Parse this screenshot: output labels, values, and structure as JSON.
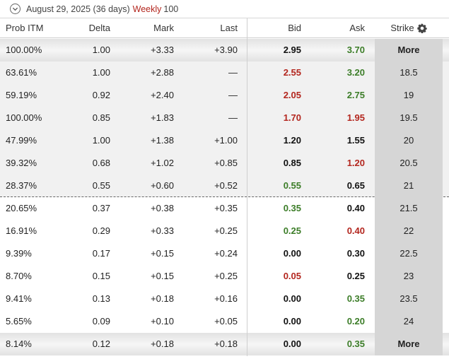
{
  "expiry": {
    "date": "August 29, 2025",
    "days": "(36 days)",
    "type": "Weekly",
    "count": "100"
  },
  "headers": {
    "prob": "Prob ITM",
    "delta": "Delta",
    "mark": "Mark",
    "last": "Last",
    "bid": "Bid",
    "ask": "Ask",
    "strike": "Strike"
  },
  "colors": {
    "up": "#3c7d28",
    "down": "#b3261e",
    "neutral": "#111111"
  },
  "rows": [
    {
      "prob": "100.00%",
      "delta": "1.00",
      "mark": "+3.33",
      "last": "+3.90",
      "bid": "2.95",
      "bid_dir": "neu",
      "ask": "3.70",
      "ask_dir": "pos",
      "strike": "More"
    },
    {
      "prob": "63.61%",
      "delta": "1.00",
      "mark": "+2.88",
      "last": "—",
      "bid": "2.55",
      "bid_dir": "neg",
      "ask": "3.20",
      "ask_dir": "pos",
      "strike": "18.5"
    },
    {
      "prob": "59.19%",
      "delta": "0.92",
      "mark": "+2.40",
      "last": "—",
      "bid": "2.05",
      "bid_dir": "neg",
      "ask": "2.75",
      "ask_dir": "pos",
      "strike": "19"
    },
    {
      "prob": "100.00%",
      "delta": "0.85",
      "mark": "+1.83",
      "last": "—",
      "bid": "1.70",
      "bid_dir": "neg",
      "ask": "1.95",
      "ask_dir": "neg",
      "strike": "19.5"
    },
    {
      "prob": "47.99%",
      "delta": "1.00",
      "mark": "+1.38",
      "last": "+1.00",
      "bid": "1.20",
      "bid_dir": "neu",
      "ask": "1.55",
      "ask_dir": "neu",
      "strike": "20"
    },
    {
      "prob": "39.32%",
      "delta": "0.68",
      "mark": "+1.02",
      "last": "+0.85",
      "bid": "0.85",
      "bid_dir": "neu",
      "ask": "1.20",
      "ask_dir": "neg",
      "strike": "20.5"
    },
    {
      "prob": "28.37%",
      "delta": "0.55",
      "mark": "+0.60",
      "last": "+0.52",
      "bid": "0.55",
      "bid_dir": "pos",
      "ask": "0.65",
      "ask_dir": "neu",
      "strike": "21"
    },
    {
      "prob": "20.65%",
      "delta": "0.37",
      "mark": "+0.38",
      "last": "+0.35",
      "bid": "0.35",
      "bid_dir": "pos",
      "ask": "0.40",
      "ask_dir": "neu",
      "strike": "21.5"
    },
    {
      "prob": "16.91%",
      "delta": "0.29",
      "mark": "+0.33",
      "last": "+0.25",
      "bid": "0.25",
      "bid_dir": "pos",
      "ask": "0.40",
      "ask_dir": "neg",
      "strike": "22"
    },
    {
      "prob": "9.39%",
      "delta": "0.17",
      "mark": "+0.15",
      "last": "+0.24",
      "bid": "0.00",
      "bid_dir": "neu",
      "ask": "0.30",
      "ask_dir": "neu",
      "strike": "22.5"
    },
    {
      "prob": "8.70%",
      "delta": "0.15",
      "mark": "+0.15",
      "last": "+0.25",
      "bid": "0.05",
      "bid_dir": "neg",
      "ask": "0.25",
      "ask_dir": "neu",
      "strike": "23"
    },
    {
      "prob": "9.41%",
      "delta": "0.13",
      "mark": "+0.18",
      "last": "+0.16",
      "bid": "0.00",
      "bid_dir": "neu",
      "ask": "0.35",
      "ask_dir": "pos",
      "strike": "23.5"
    },
    {
      "prob": "5.65%",
      "delta": "0.09",
      "mark": "+0.10",
      "last": "+0.05",
      "bid": "0.00",
      "bid_dir": "neu",
      "ask": "0.20",
      "ask_dir": "pos",
      "strike": "24"
    },
    {
      "prob": "8.14%",
      "delta": "0.12",
      "mark": "+0.18",
      "last": "+0.18",
      "bid": "0.00",
      "bid_dir": "neu",
      "ask": "0.35",
      "ask_dir": "pos",
      "strike": "More"
    }
  ]
}
